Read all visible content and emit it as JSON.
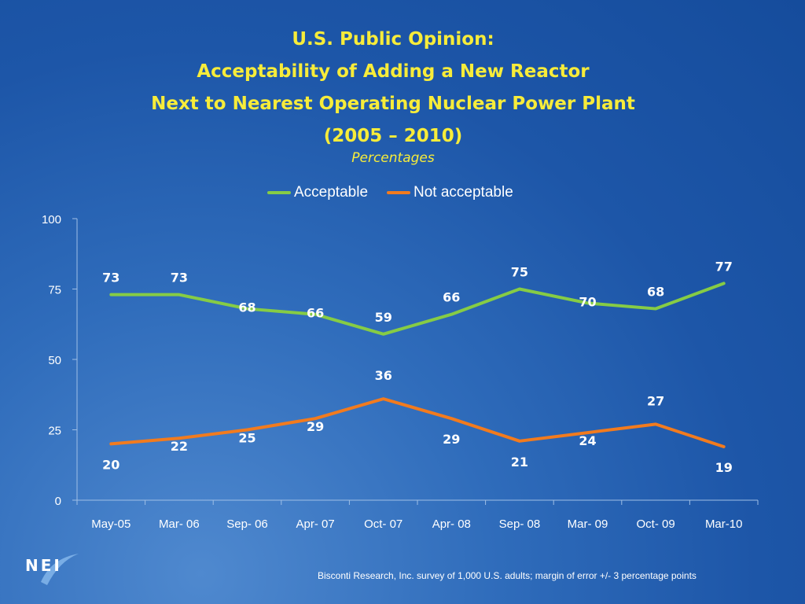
{
  "title_lines": [
    "U.S. Public Opinion:",
    "Acceptability of Adding a New Reactor",
    "Next to Nearest Operating Nuclear Power Plant",
    "(2005 – 2010)"
  ],
  "subtitle": "Percentages",
  "logo_text": "NEI",
  "footnote": "Bisconti Research, Inc. survey of 1,000 U.S. adults; margin of error +/- 3 percentage points",
  "colors": {
    "acceptable": "#86cc45",
    "not_acceptable": "#f27b1e",
    "title": "#f7ec3a",
    "axis": "#9fbfe6"
  },
  "chart_data": {
    "type": "line",
    "categories": [
      "May-05",
      "Mar- 06",
      "Sep- 06",
      "Apr- 07",
      "Oct- 07",
      "Apr- 08",
      "Sep- 08",
      "Mar- 09",
      "Oct- 09",
      "Mar-10"
    ],
    "series": [
      {
        "name": "Acceptable",
        "values": [
          73,
          73,
          68,
          66,
          59,
          66,
          75,
          70,
          68,
          77
        ]
      },
      {
        "name": "Not acceptable",
        "values": [
          20,
          22,
          25,
          29,
          36,
          29,
          21,
          24,
          27,
          19
        ]
      }
    ],
    "ylim": [
      0,
      100
    ],
    "yticks": [
      0,
      25,
      50,
      75,
      100
    ],
    "grid": false,
    "legend_position": "top"
  }
}
